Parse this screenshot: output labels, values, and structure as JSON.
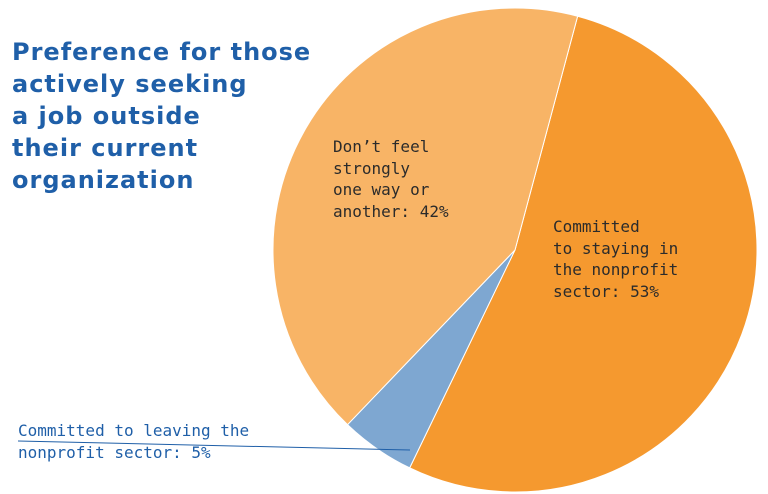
{
  "chart_data": {
    "type": "pie",
    "title_lines": [
      "Preference for those",
      "actively seeking",
      "a job outside",
      "their current",
      "organization"
    ],
    "slices": [
      {
        "key": "staying",
        "label_lines": [
          "Committed",
          "to staying in",
          "the nonprofit",
          "sector: 53%"
        ],
        "value": 53,
        "color": "#f5992f"
      },
      {
        "key": "leaving",
        "label_lines": [
          "Committed to leaving the",
          "nonprofit sector: 5%"
        ],
        "value": 5,
        "color": "#7ea7d1"
      },
      {
        "key": "neutral",
        "label_lines": [
          "Don’t feel",
          "strongly",
          "one way or",
          "another: 42%"
        ],
        "value": 42,
        "color": "#f8b466"
      }
    ],
    "leader_line_color": "#1f5fa8",
    "slice_border_color": "#ffffff"
  }
}
